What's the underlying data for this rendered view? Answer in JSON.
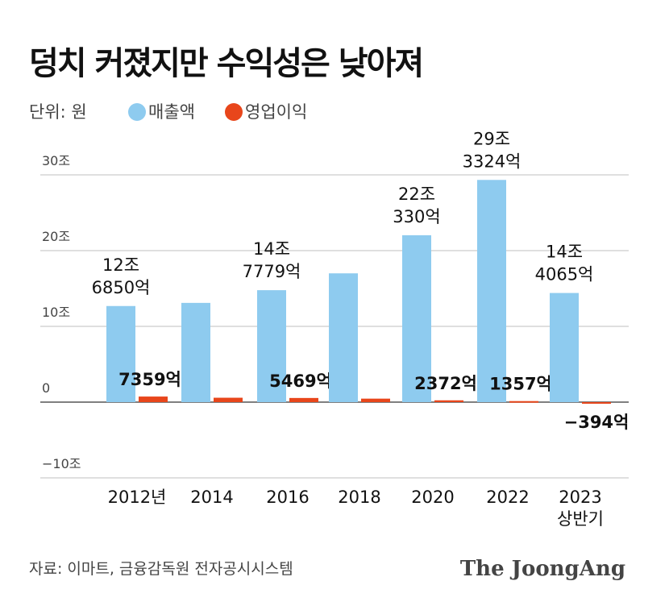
{
  "chart_data": {
    "type": "bar",
    "title": "덩치 커졌지만 수익성은 낮아져",
    "unit_label": "단위: 원",
    "categories": [
      "2012년",
      "2014",
      "2016",
      "2018",
      "2020",
      "2022",
      "2023\n상반기"
    ],
    "category_lines": [
      [
        "2012년"
      ],
      [
        "2014"
      ],
      [
        "2016"
      ],
      [
        "2018"
      ],
      [
        "2020"
      ],
      [
        "2022"
      ],
      [
        "2023",
        "상반기"
      ]
    ],
    "ylim": [
      -10,
      30
    ],
    "yticks": [
      30,
      20,
      10,
      0,
      -10
    ],
    "ytick_labels": [
      "30조",
      "20조",
      "10조",
      "0",
      "−10조"
    ],
    "y_unit": "조 원",
    "grid": true,
    "legend_position": "top-left",
    "series": [
      {
        "name": "매출액",
        "color": "#8ecbef",
        "values": [
          12.685,
          13.1,
          14.7779,
          17.0,
          22.033,
          29.3324,
          14.4065
        ],
        "labels": [
          [
            "12조",
            "6850억"
          ],
          null,
          [
            "14조",
            "7779억"
          ],
          null,
          [
            "22조",
            "330억"
          ],
          [
            "29조",
            "3324억"
          ],
          [
            "14조",
            "4065억"
          ]
        ]
      },
      {
        "name": "영업이익",
        "color": "#e8461b",
        "values": [
          0.7359,
          0.58,
          0.5469,
          0.46,
          0.2372,
          0.1357,
          -0.0394
        ],
        "labels": [
          "7359억",
          null,
          "5469억",
          null,
          "2372억",
          "1357억",
          "−394억"
        ]
      }
    ],
    "source": "자료: 이마트, 금융감독원 전자공시시스템",
    "brand": "The JoongAng"
  }
}
